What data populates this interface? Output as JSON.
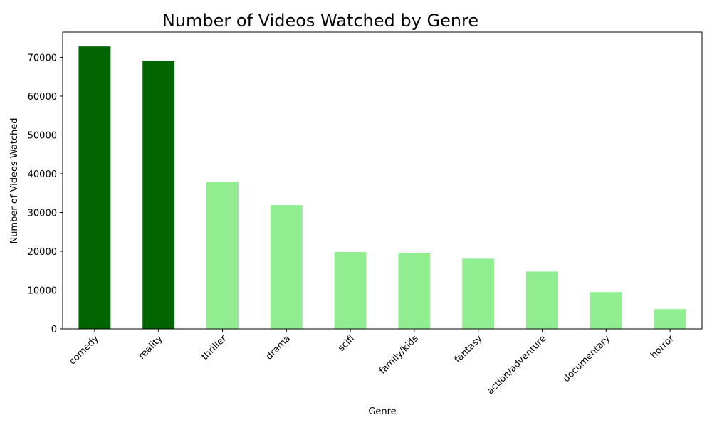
{
  "chart_data": {
    "type": "bar",
    "title": "Number of Videos Watched by Genre",
    "xlabel": "Genre",
    "ylabel": "Number of Videos Watched",
    "categories": [
      "comedy",
      "reality",
      "thriller",
      "drama",
      "scifi",
      "family/kids",
      "fantasy",
      "action/adventure",
      "documentary",
      "horror"
    ],
    "values": [
      72800,
      69100,
      37900,
      31900,
      19800,
      19600,
      18100,
      14800,
      9500,
      5100
    ],
    "ylim": [
      0,
      76500
    ],
    "yticks": [
      0,
      10000,
      20000,
      30000,
      40000,
      50000,
      60000,
      70000
    ],
    "grid": false,
    "legend": "none",
    "colors": {
      "highlight": "#006400",
      "default": "#90ee90",
      "axis": "#000000",
      "background": "#ffffff"
    },
    "highlighted_categories": [
      "comedy",
      "reality"
    ]
  }
}
